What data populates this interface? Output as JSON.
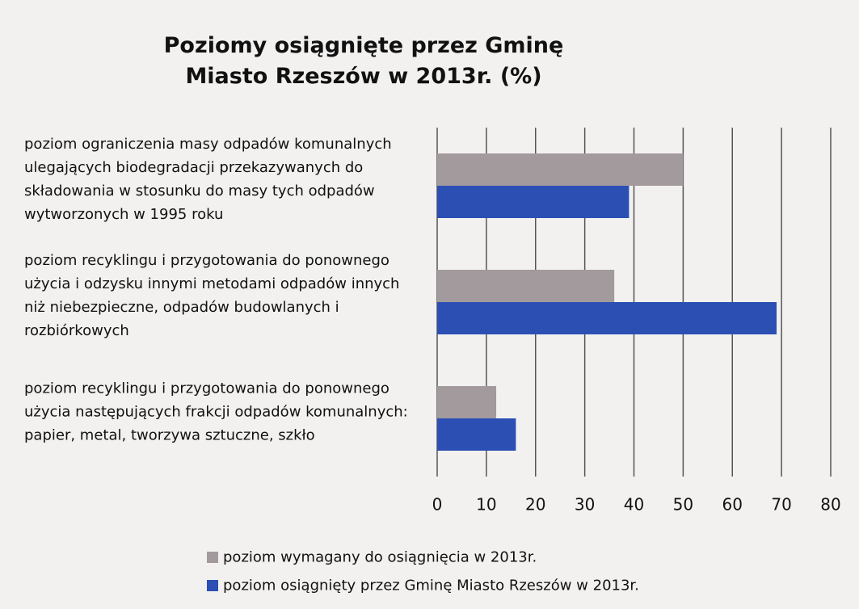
{
  "chart_data": {
    "type": "barh",
    "title": "Poziomy osiągnięte przez Gminę Miasto Rzeszów w 2013r. (%)",
    "categories": [
      "poziom ograniczenia masy odpadów komunalnych ulegających biodegradacji przekazywanych do składowania w stosunku do masy tych odpadów wytworzonych w 1995 roku",
      "poziom recyklingu i przygotowania do ponownego użycia i odzysku innymi metodami odpadów innych niż niebezpieczne, odpadów budowlanych i rozbiórkowych",
      "poziom recyklingu i przygotowania do ponownego użycia następujących frakcji odpadów komunalnych: papier, metal, tworzywa sztuczne, szkło"
    ],
    "series": [
      {
        "name": "poziom wymagany do osiągnięcia w 2013r.",
        "color": "#a39a9d",
        "values": [
          50,
          36,
          12
        ]
      },
      {
        "name": "poziom osiągnięty przez Gminę Miasto Rzeszów w 2013r.",
        "color": "#2c4fb4",
        "values": [
          39,
          69,
          16
        ]
      }
    ],
    "xlim": [
      0,
      80
    ],
    "xticks": [
      0,
      10,
      20,
      30,
      40,
      50,
      60,
      70,
      80
    ],
    "grid": true,
    "legend": "bottom"
  }
}
